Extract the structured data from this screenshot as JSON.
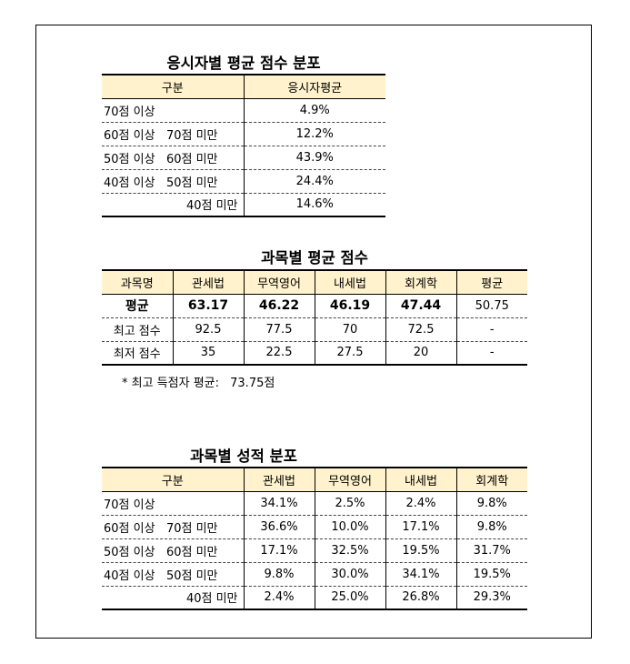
{
  "t1": {
    "title": "응시자별 평균 점수 분포",
    "headers": [
      "구분",
      "응시자평균"
    ],
    "rows": [
      {
        "label": "70점 이상",
        "value": "4.9%"
      },
      {
        "label": "60점 이상   70점 미만",
        "value": "12.2%"
      },
      {
        "label": "50점 이상   60점 미만",
        "value": "43.9%"
      },
      {
        "label": "40점 이상   50점 미만",
        "value": "24.4%"
      },
      {
        "label": "40점 미만",
        "value": "14.6%"
      }
    ]
  },
  "t2": {
    "title": "과목별 평균 점수",
    "headers": [
      "과목명",
      "관세법",
      "무역영어",
      "내세법",
      "회계학",
      "평균"
    ],
    "rows": [
      {
        "label": "평균",
        "values": [
          "63.17",
          "46.22",
          "46.19",
          "47.44",
          "50.75"
        ]
      },
      {
        "label": "최고 점수",
        "values": [
          "92.5",
          "77.5",
          "70",
          "72.5",
          "-"
        ]
      },
      {
        "label": "최저 점수",
        "values": [
          "35",
          "22.5",
          "27.5",
          "20",
          "-"
        ]
      }
    ],
    "note_label": "* 최고 득점자 평균:",
    "note_value": "73.75점"
  },
  "t3": {
    "title": "과목별 성적 분포",
    "headers": [
      "구분",
      "관세법",
      "무역영어",
      "내세법",
      "회계학"
    ],
    "rows": [
      {
        "label": "70점 이상",
        "values": [
          "34.1%",
          "2.5%",
          "2.4%",
          "9.8%"
        ]
      },
      {
        "label": "60점 이상   70점 미만",
        "values": [
          "36.6%",
          "10.0%",
          "17.1%",
          "9.8%"
        ]
      },
      {
        "label": "50점 이상   60점 미만",
        "values": [
          "17.1%",
          "32.5%",
          "19.5%",
          "31.7%"
        ]
      },
      {
        "label": "40점 이상   50점 미만",
        "values": [
          "9.8%",
          "30.0%",
          "34.1%",
          "19.5%"
        ]
      },
      {
        "label": "40점 미만",
        "values": [
          "2.4%",
          "25.0%",
          "26.8%",
          "29.3%"
        ]
      }
    ]
  }
}
